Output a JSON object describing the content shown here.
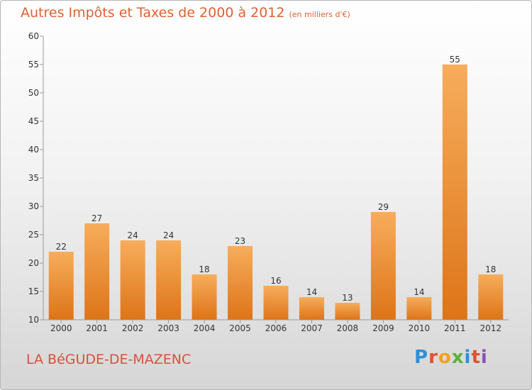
{
  "chart_data": {
    "type": "bar",
    "title": "Autres Impôts et Taxes de 2000 à 2012",
    "subtitle": "(en milliers d'€)",
    "categories": [
      "2000",
      "2001",
      "2002",
      "2003",
      "2004",
      "2005",
      "2006",
      "2007",
      "2008",
      "2009",
      "2010",
      "2011",
      "2012"
    ],
    "values": [
      22,
      27,
      24,
      24,
      18,
      23,
      16,
      14,
      13,
      29,
      14,
      55,
      18
    ],
    "ylim": [
      10,
      60
    ],
    "yticks": [
      10,
      15,
      20,
      25,
      30,
      35,
      40,
      45,
      50,
      55,
      60
    ],
    "grid": false,
    "bar_color": "#f0922e",
    "bar_color_light": "#f7ad5c",
    "bar_color_dark": "#dd7418"
  },
  "footer": {
    "commune": "LA BéGUDE-DE-MAZENC"
  },
  "brand": {
    "text": "Proxiti",
    "letter_colors": [
      "#2e8fd6",
      "#e0522e",
      "#f0a21e",
      "#57b33a",
      "#2e8fd6",
      "#e0522e",
      "#8a52b8"
    ]
  }
}
